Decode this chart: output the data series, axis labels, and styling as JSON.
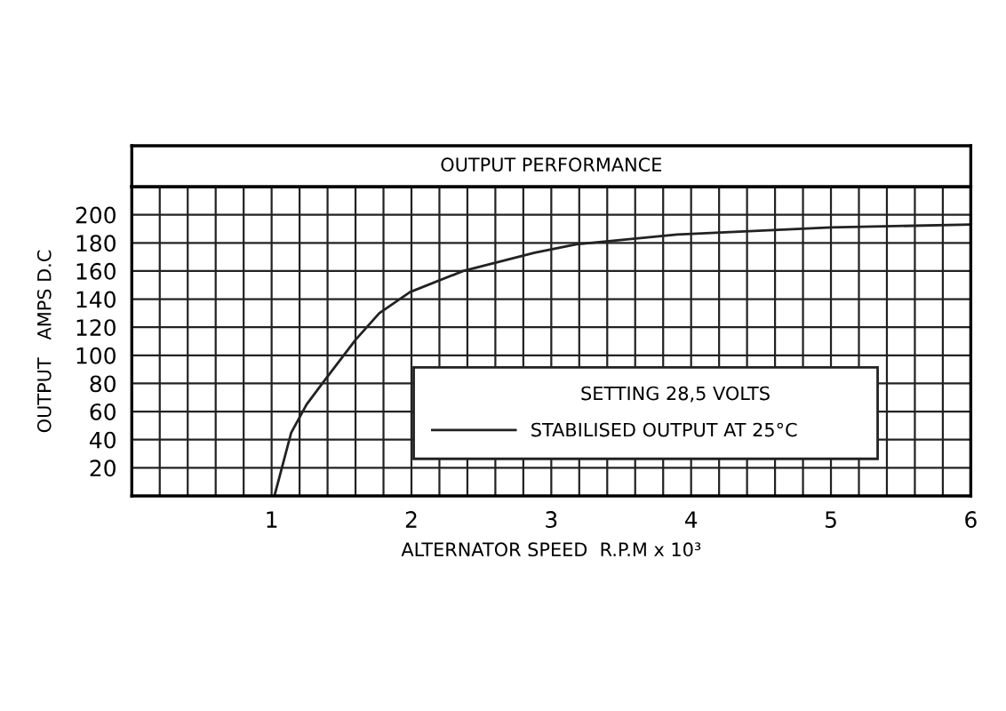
{
  "chart_data": {
    "type": "line",
    "title": "OUTPUT PERFORMANCE",
    "xlabel": "ALTERNATOR SPEED  R.P.M x 10³",
    "ylabel": "OUTPUT   AMPS D.C",
    "legend_title": "SETTING 28,5 VOLTS",
    "x": [
      1.02,
      1.06,
      1.14,
      1.25,
      1.37,
      1.6,
      1.77,
      1.99,
      2.37,
      2.88,
      3.18,
      3.9,
      5.0,
      6.0
    ],
    "series": [
      {
        "name": "STABILISED OUTPUT AT 25°C",
        "color": "#222222",
        "values": [
          0,
          15,
          45,
          65,
          81,
          111,
          130,
          145,
          160,
          173,
          179,
          186,
          191,
          193
        ]
      }
    ],
    "xlim": [
      0,
      6
    ],
    "ylim": [
      0,
      220
    ],
    "xticks": [
      {
        "value": 0.2,
        "label": null
      },
      {
        "value": 0.4,
        "label": null
      },
      {
        "value": 0.6,
        "label": null
      },
      {
        "value": 0.8,
        "label": null
      },
      1,
      {
        "value": 1.2,
        "label": null
      },
      {
        "value": 1.4,
        "label": null
      },
      {
        "value": 1.6,
        "label": null
      },
      {
        "value": 1.8,
        "label": null
      },
      2,
      {
        "value": 2.2,
        "label": null
      },
      {
        "value": 2.4,
        "label": null
      },
      {
        "value": 2.6,
        "label": null
      },
      {
        "value": 2.8,
        "label": null
      },
      3,
      {
        "value": 3.2,
        "label": null
      },
      {
        "value": 3.4,
        "label": null
      },
      {
        "value": 3.6,
        "label": null
      },
      {
        "value": 3.8,
        "label": null
      },
      4,
      {
        "value": 4.2,
        "label": null
      },
      {
        "value": 4.4,
        "label": null
      },
      {
        "value": 4.6,
        "label": null
      },
      {
        "value": 4.8,
        "label": null
      },
      5,
      {
        "value": 5.2,
        "label": null
      },
      {
        "value": 5.4,
        "label": null
      },
      {
        "value": 5.6,
        "label": null
      },
      {
        "value": 5.8,
        "label": null
      },
      6
    ],
    "yticks": [
      20,
      40,
      60,
      80,
      100,
      120,
      140,
      160,
      180,
      200
    ],
    "grid": true,
    "legend": "bottom right",
    "line_style": "solid",
    "marker": "none"
  }
}
